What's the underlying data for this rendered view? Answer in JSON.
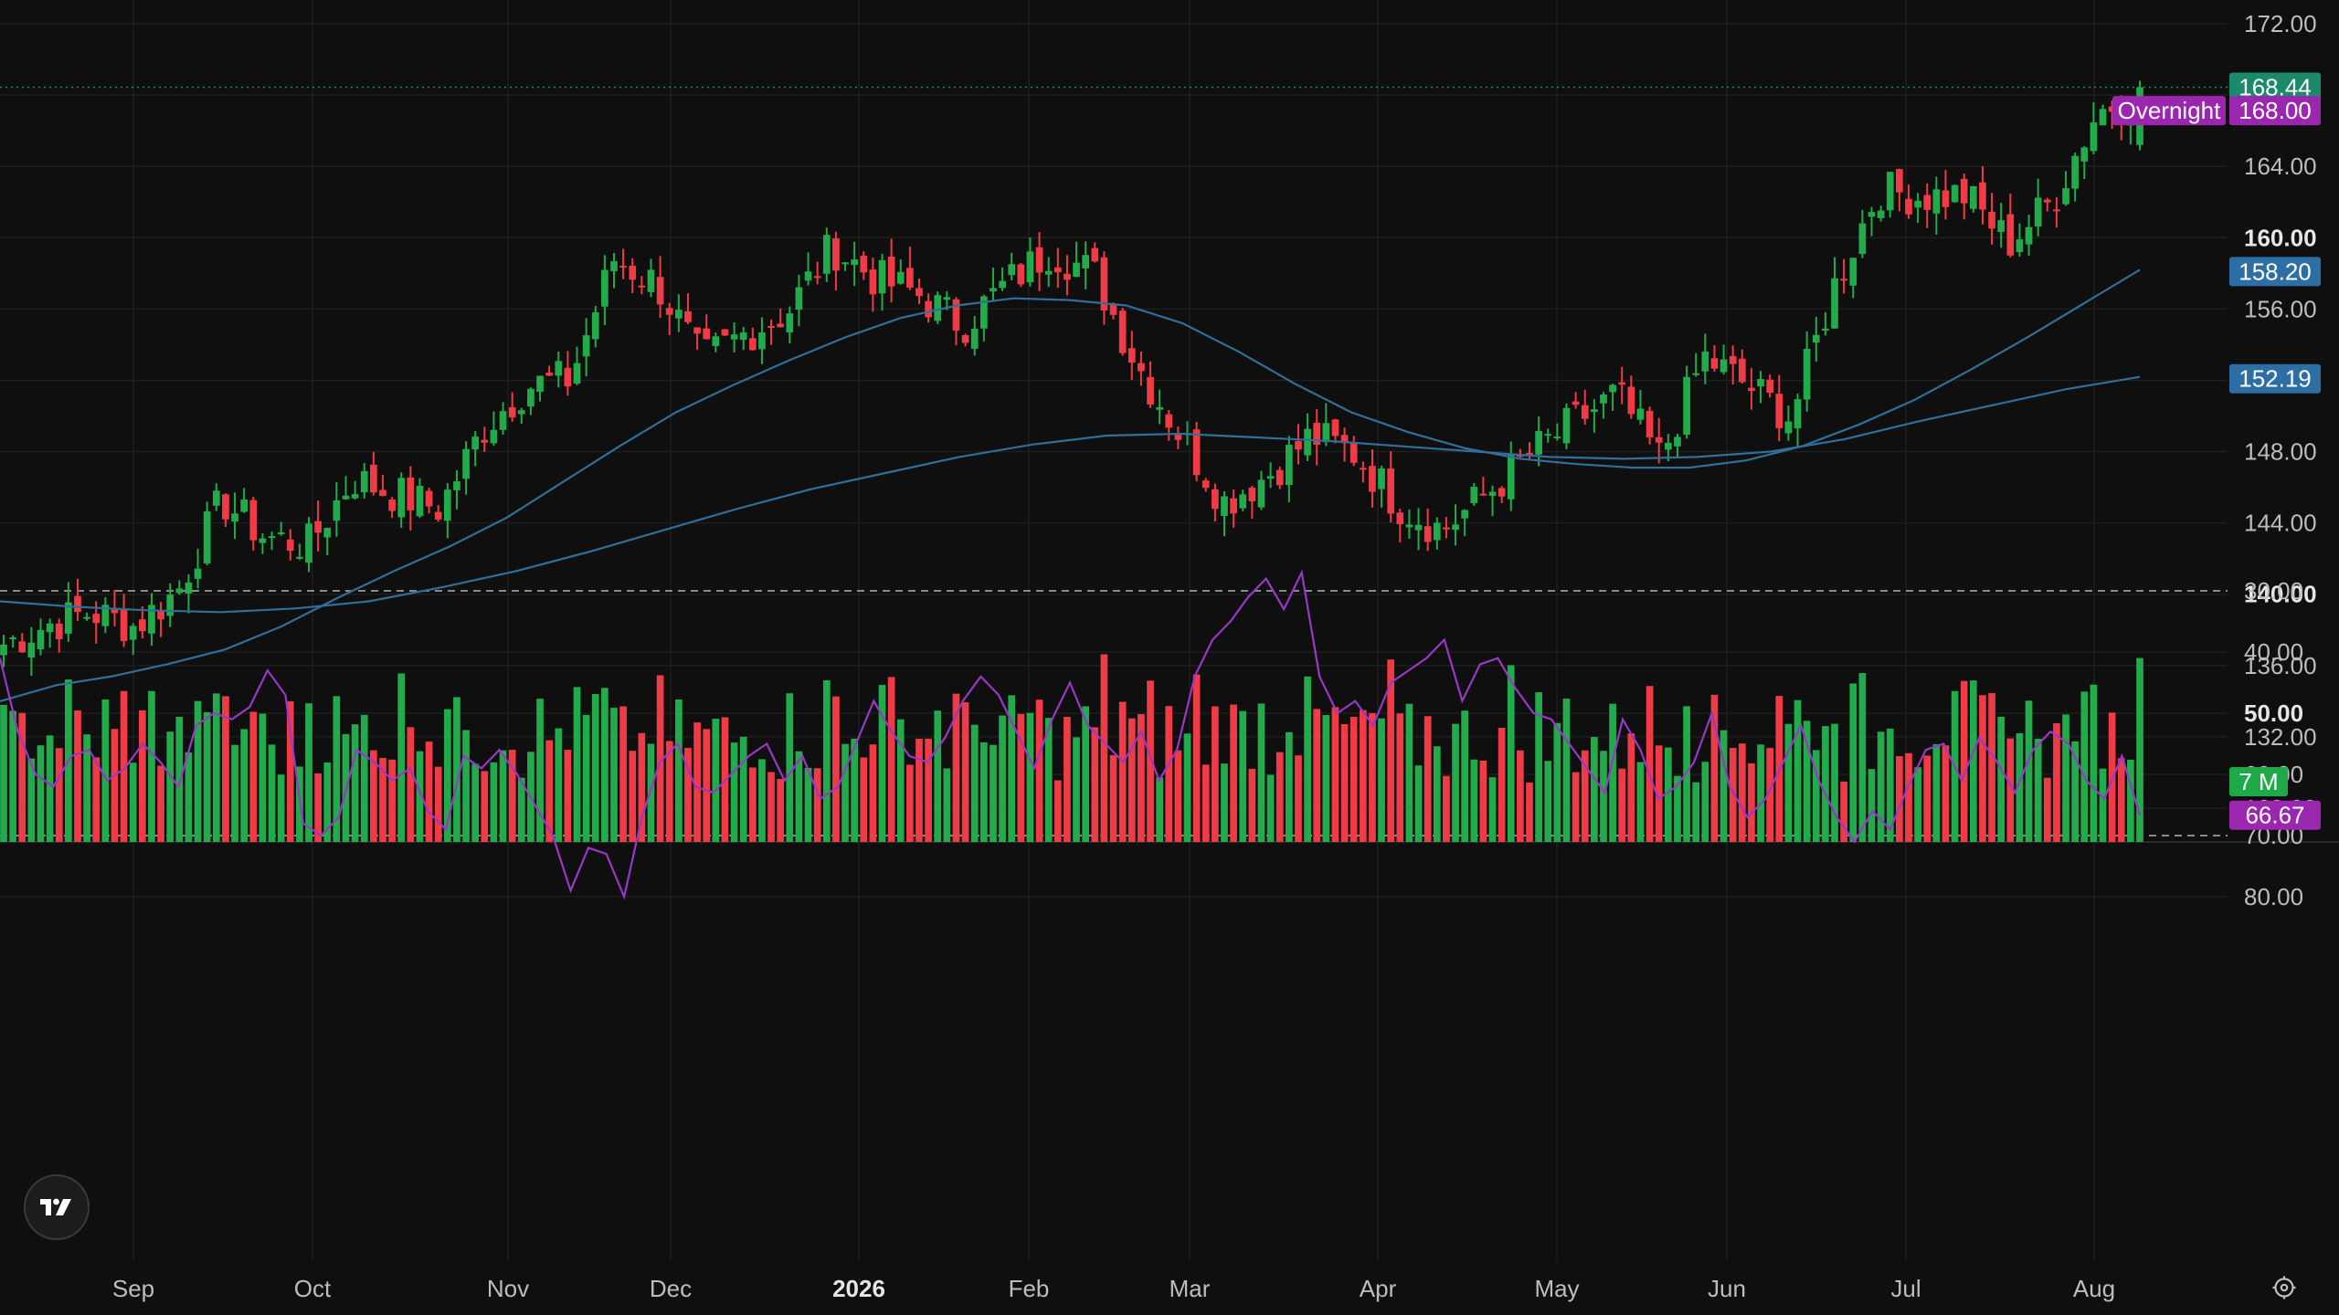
{
  "colors": {
    "background": "#0f0f0f",
    "grid": "#1e1e1e",
    "up": "#22ab4b",
    "down": "#ef3b45",
    "ma_short": "#2f6f98",
    "ma_long": "#2f6f98",
    "last_price_bg": "#1b8a6b",
    "overnight_bg": "#9b27b0",
    "ma_label_bg": "#2d6fa5",
    "rsi_line": "#9a37c6",
    "rsi_band": "#1f0f2a",
    "axis_text": "#d0d0d0"
  },
  "price_axis": {
    "ticks": [
      "172.00",
      "168.00",
      "164.00",
      "160.00",
      "156.00",
      "152.00",
      "148.00",
      "144.00",
      "140.00",
      "136.00",
      "132.00",
      "128.00"
    ],
    "bold_ticks": [
      "160.00",
      "140.00"
    ]
  },
  "price_labels": {
    "last": "168.44",
    "overnight_tag": "Overnight",
    "overnight": "168.00",
    "ma_short": "158.20",
    "ma_long": "152.19",
    "volume": "7 M"
  },
  "rsi_axis": {
    "ticks": [
      "80.00",
      "70.00",
      "60.00",
      "50.00",
      "40.00",
      "30.00"
    ],
    "bold_ticks": [
      "50.00"
    ],
    "current": "66.67"
  },
  "time_axis": {
    "labels": [
      "Sep",
      "Oct",
      "Nov",
      "Dec",
      "2026",
      "Feb",
      "Mar",
      "Apr",
      "May",
      "Jun",
      "Jul",
      "Aug"
    ],
    "bold_labels": [
      "2026"
    ]
  },
  "icons": {
    "logo": "tradingview-logo-icon",
    "settings": "settings-gear-icon"
  },
  "chart_data": [
    {
      "type": "candlestick",
      "panel": "price",
      "y_range": [
        126,
        173
      ],
      "series": [
        {
          "name": "",
          "kind": "ohlc_close_approx",
          "anchor_dates": [
            "Sep",
            "Oct",
            "Nov",
            "Dec",
            "2026",
            "Feb",
            "Mar",
            "Apr",
            "May",
            "Jun",
            "Jul",
            "Aug"
          ],
          "values": [
            137.2,
            138.3,
            139.0,
            138.2,
            140.2,
            145.3,
            143.2,
            142.8,
            146.5,
            145.6,
            144.8,
            149.3,
            151.7,
            152.1,
            158.8,
            157.4,
            153.1,
            154.6,
            155.9,
            159.5,
            157.7,
            156.8,
            155.1,
            157.4,
            159.3,
            158.0,
            152.9,
            148.9,
            145.2,
            146.7,
            148.9,
            147.9,
            145.0,
            143.6,
            145.6,
            147.8,
            149.6,
            151.2,
            147.6,
            153.3,
            151.7,
            149.9,
            157.3,
            162.7,
            162.3,
            162.4,
            159.7,
            162.1,
            167.0,
            168.3
          ]
        }
      ]
    },
    {
      "type": "line",
      "panel": "price",
      "series": [
        {
          "name": "",
          "values": [
            134.0,
            134.9,
            135.4,
            136.1,
            136.9,
            138.2,
            139.8,
            141.3,
            142.7,
            144.3,
            146.3,
            148.3,
            150.2,
            151.7,
            153.1,
            154.4,
            155.5,
            156.2,
            156.6,
            156.5,
            156.2,
            155.2,
            153.6,
            151.8,
            150.2,
            149.1,
            148.2,
            147.6,
            147.3,
            147.1,
            147.1,
            147.5,
            148.3,
            149.5,
            150.9,
            152.6,
            154.4,
            156.3,
            158.2
          ]
        },
        {
          "name": "",
          "values": [
            139.6,
            139.3,
            139.1,
            139.0,
            139.2,
            139.6,
            140.4,
            141.3,
            142.4,
            143.6,
            144.8,
            145.9,
            146.8,
            147.7,
            148.4,
            148.9,
            149.0,
            148.8,
            148.6,
            148.3,
            148.0,
            147.7,
            147.6,
            147.7,
            148.0,
            148.7,
            149.7,
            150.6,
            151.5,
            152.19
          ]
        }
      ]
    },
    {
      "type": "bar",
      "panel": "volume",
      "y_label_current": "7 M"
    },
    {
      "type": "line",
      "panel": "rsi",
      "y_range": [
        25,
        85
      ],
      "bands": [
        30,
        70
      ],
      "series": [
        {
          "name": "",
          "values": [
            41,
            53,
            60,
            62,
            57,
            56,
            61,
            59,
            55,
            58,
            62,
            52,
            50,
            51,
            49,
            43,
            47,
            68,
            70,
            67,
            56,
            58,
            61,
            59,
            66,
            69,
            57,
            59,
            56,
            60,
            65,
            70,
            79,
            72,
            73,
            80,
            67,
            58,
            55,
            62,
            63,
            60,
            57,
            55,
            61,
            57,
            64,
            62,
            55,
            48,
            53,
            57,
            58,
            54,
            48,
            44,
            47,
            53,
            59,
            51,
            45,
            52,
            55,
            58,
            53,
            61,
            56,
            44,
            38,
            35,
            31,
            28,
            33,
            27,
            44,
            50,
            48,
            52,
            45,
            43,
            41,
            38,
            48,
            42,
            41,
            46,
            50,
            51,
            55,
            59,
            63,
            51,
            56,
            64,
            62,
            58,
            50,
            62,
            67,
            64,
            58,
            52,
            61,
            67,
            71,
            66,
            69,
            62,
            56,
            55,
            61,
            54,
            58,
            63,
            56,
            53,
            55,
            61,
            64,
            57,
            66.67
          ]
        }
      ]
    }
  ]
}
